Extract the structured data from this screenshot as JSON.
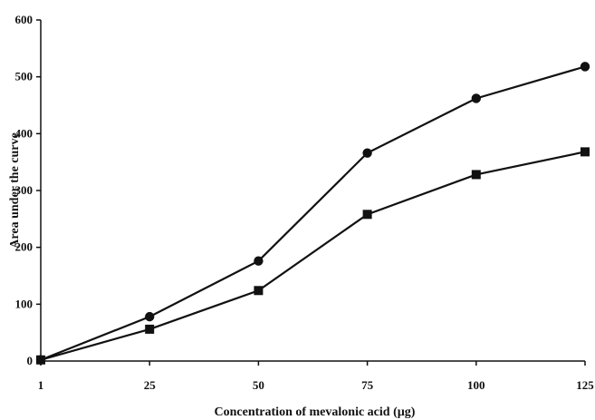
{
  "chart_data": {
    "type": "line",
    "title": "",
    "xlabel": "Concentration of mevalonic acid (µg)",
    "ylabel": "Area under the curve",
    "categories": [
      "1",
      "25",
      "50",
      "75",
      "100",
      "125"
    ],
    "ylim": [
      0,
      600
    ],
    "yticks": [
      "0",
      "100",
      "200",
      "300",
      "400",
      "500",
      "600"
    ],
    "grid": false,
    "series": [
      {
        "marker": "circle",
        "color": "#111111",
        "values": [
          2,
          78,
          176,
          366,
          462,
          518
        ]
      },
      {
        "marker": "square",
        "color": "#111111",
        "values": [
          2,
          56,
          124,
          258,
          328,
          368
        ]
      }
    ]
  }
}
